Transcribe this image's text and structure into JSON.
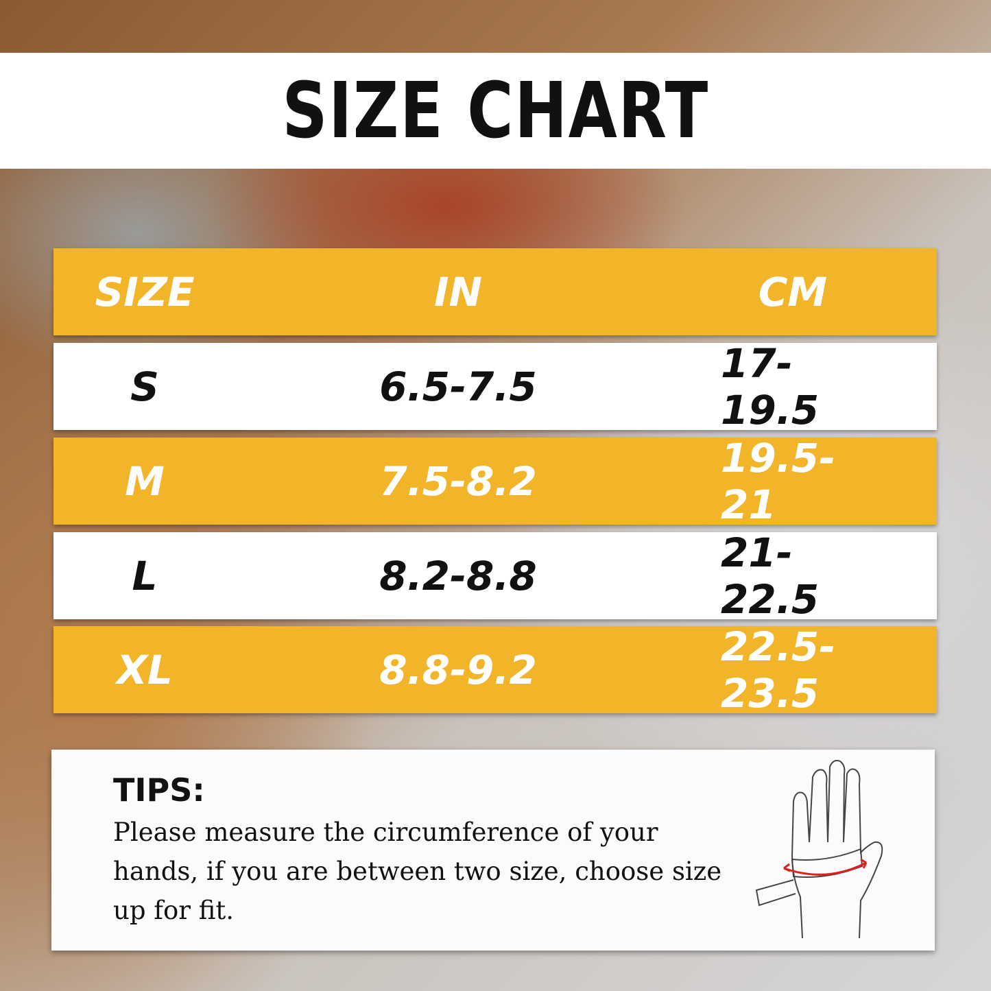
{
  "title": "SIZE CHART",
  "table": {
    "headers": [
      "SIZE",
      "IN",
      "CM"
    ],
    "rows": [
      [
        "S",
        "6.5-7.5",
        "17-19.5"
      ],
      [
        "M",
        "7.5-8.2",
        "19.5-21"
      ],
      [
        "L",
        "8.2-8.8",
        "21-22.5"
      ],
      [
        "XL",
        "8.8-9.2",
        "22.5-23.5"
      ]
    ]
  },
  "tips": {
    "heading": "TIPS:",
    "text": "Please measure the circumference of your hands, if you are between two size, choose size up for fit."
  },
  "colors": {
    "accent": "#f2b428",
    "measure_arrow": "#e0201c"
  },
  "illustration": "hand-measuring-icon"
}
